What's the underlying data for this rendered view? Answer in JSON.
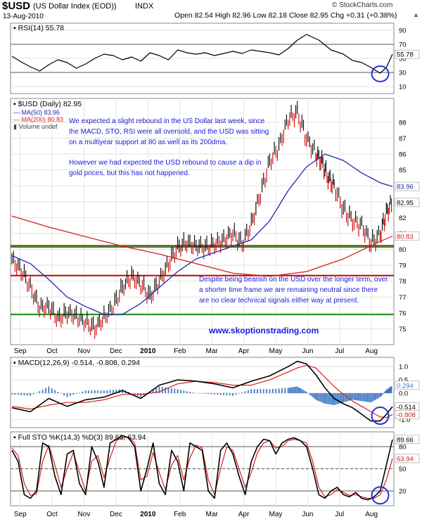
{
  "header": {
    "symbol": "$USD",
    "name": "(US Dollar Index (EOD))",
    "exchange": "INDX",
    "date": "13-Aug-2010",
    "ohlc": "Open 82.54  High 82.96  Low 82.18  Close 82.95  Chg +0.31 (+0.38%)",
    "up_arrow": "▲",
    "copyright": "© StockCharts.com"
  },
  "colors": {
    "price_up": "#000000",
    "price_down": "#cc0000",
    "ma50": "#1f2aa8",
    "ma200": "#d42020",
    "support_green": "#1a8a1a",
    "support_red": "#cc0000",
    "annotation": "#1a1adb",
    "highlight_circle": "#2233dd",
    "macd_hist": "#3b77c4",
    "rsi_fill": "#777777"
  },
  "chart_data": [
    {
      "type": "line",
      "title": "RSI(14) 55.78",
      "ylim": [
        0,
        100
      ],
      "ticks": [
        10,
        30,
        50,
        70,
        90
      ],
      "guides": [
        30,
        70
      ],
      "last_value_label": "55.78",
      "series": [
        {
          "name": "RSI(14)",
          "x": [
            0,
            6,
            12,
            18,
            24,
            30,
            36,
            42,
            48,
            54,
            60,
            66,
            72,
            78,
            84,
            90,
            96,
            102,
            108,
            114,
            120,
            126,
            132,
            138,
            144,
            150,
            156,
            162,
            168,
            174,
            180,
            186,
            192,
            200,
            208,
            216,
            222,
            228,
            234,
            240,
            244,
            248
          ],
          "values": [
            53,
            45,
            38,
            32,
            41,
            48,
            44,
            36,
            42,
            50,
            56,
            54,
            48,
            52,
            46,
            58,
            54,
            48,
            62,
            58,
            56,
            58,
            54,
            57,
            60,
            57,
            62,
            60,
            58,
            55,
            64,
            76,
            84,
            76,
            62,
            56,
            47,
            44,
            37,
            29,
            37,
            56
          ]
        }
      ],
      "circle_note": true
    },
    {
      "type": "line",
      "title": "$USD (Daily) 82.95",
      "legend": [
        "MA(50) 83.96",
        "MA(200) 80.83",
        "Volume undef"
      ],
      "ylim": [
        74,
        89.5
      ],
      "ticks": [
        75,
        76,
        77,
        78,
        79,
        80,
        81,
        82,
        83,
        84,
        85,
        86,
        87,
        88
      ],
      "value_labels": [
        "83.96",
        "82.95",
        "80.83"
      ],
      "x_labels": [
        "Sep",
        "Oct",
        "Nov",
        "Dec",
        "2010",
        "Feb",
        "Mar",
        "Apr",
        "May",
        "Jun",
        "Jul",
        "Aug"
      ],
      "horizontal_lines": [
        {
          "value": 80.15,
          "color": "green"
        },
        {
          "value": 80.15,
          "color": "red",
          "offset": 0.0
        },
        {
          "value": 78.35,
          "color": "red"
        },
        {
          "value": 75.9,
          "color": "green"
        }
      ],
      "series": [
        {
          "name": "$USD",
          "x": [
            0,
            6,
            12,
            18,
            24,
            30,
            36,
            42,
            48,
            54,
            60,
            66,
            72,
            78,
            84,
            90,
            96,
            102,
            108,
            114,
            120,
            126,
            132,
            138,
            144,
            150,
            156,
            162,
            168,
            174,
            180,
            186,
            192,
            198,
            202,
            206,
            210,
            216,
            222,
            228,
            234,
            240,
            244,
            248
          ],
          "values": [
            79.3,
            78.7,
            77.6,
            76.3,
            76.4,
            75.6,
            76.0,
            75.8,
            75.4,
            75.0,
            75.7,
            76.4,
            77.6,
            78.3,
            77.8,
            77.0,
            78.0,
            79.1,
            80.1,
            80.4,
            80.2,
            80.1,
            80.3,
            80.6,
            81.0,
            80.3,
            81.6,
            83.5,
            85.5,
            86.5,
            88.2,
            88.6,
            87.0,
            86.0,
            85.5,
            84.5,
            84.0,
            82.5,
            81.8,
            81.5,
            80.4,
            80.9,
            82.3,
            82.95
          ]
        },
        {
          "name": "MA(50)",
          "x": [
            0,
            12,
            24,
            36,
            48,
            60,
            72,
            84,
            96,
            108,
            120,
            132,
            144,
            156,
            168,
            180,
            192,
            204,
            216,
            228,
            240,
            248
          ],
          "values": [
            79.6,
            79.1,
            78.1,
            77.0,
            76.4,
            75.9,
            75.9,
            76.6,
            77.6,
            78.6,
            79.4,
            79.8,
            80.2,
            80.6,
            81.8,
            83.7,
            85.2,
            86.0,
            85.6,
            84.8,
            84.2,
            83.96
          ]
        },
        {
          "name": "MA(200)",
          "x": [
            0,
            24,
            48,
            72,
            96,
            120,
            144,
            168,
            192,
            216,
            240,
            248
          ],
          "values": [
            82.1,
            81.4,
            80.8,
            80.2,
            79.7,
            79.1,
            78.5,
            78.3,
            78.6,
            79.4,
            80.5,
            80.83
          ]
        }
      ]
    },
    {
      "type": "line",
      "title": "MACD(12,26,9) -0.514, -0.808, 0.294",
      "ylim": [
        -1.3,
        1.35
      ],
      "ticks": [
        -1.0,
        -0.5,
        0.0,
        0.5,
        1.0
      ],
      "value_labels": [
        "0.294",
        "-0.514",
        "-0.808"
      ],
      "series": [
        {
          "name": "MACD",
          "x": [
            0,
            12,
            24,
            36,
            48,
            60,
            72,
            84,
            96,
            108,
            120,
            132,
            144,
            156,
            168,
            180,
            186,
            192,
            198,
            204,
            210,
            216,
            222,
            228,
            234,
            240,
            244,
            248
          ],
          "values": [
            -0.55,
            -0.7,
            -0.2,
            -0.5,
            -0.25,
            -0.15,
            0.1,
            -0.2,
            0.3,
            0.5,
            0.45,
            0.35,
            0.2,
            0.45,
            0.65,
            1.0,
            1.2,
            1.1,
            0.7,
            0.2,
            -0.2,
            -0.4,
            -0.55,
            -0.8,
            -1.05,
            -1.05,
            -0.8,
            -0.514
          ]
        },
        {
          "name": "Signal",
          "x": [
            0,
            12,
            24,
            36,
            48,
            60,
            72,
            84,
            96,
            108,
            120,
            132,
            144,
            156,
            168,
            180,
            186,
            192,
            198,
            204,
            210,
            216,
            222,
            228,
            234,
            240,
            244,
            248
          ],
          "values": [
            -0.5,
            -0.6,
            -0.45,
            -0.35,
            -0.35,
            -0.25,
            -0.05,
            -0.05,
            0.05,
            0.35,
            0.45,
            0.4,
            0.3,
            0.3,
            0.5,
            0.8,
            0.95,
            1.05,
            0.95,
            0.6,
            0.25,
            -0.05,
            -0.3,
            -0.5,
            -0.7,
            -0.9,
            -0.92,
            -0.808
          ]
        },
        {
          "name": "Histogram",
          "x": [
            0,
            12,
            24,
            36,
            48,
            60,
            72,
            84,
            96,
            108,
            120,
            132,
            144,
            156,
            168,
            180,
            186,
            192,
            198,
            204,
            210,
            216,
            222,
            228,
            234,
            240,
            244,
            248
          ],
          "values": [
            -0.05,
            -0.1,
            0.25,
            -0.15,
            0.1,
            0.1,
            0.15,
            -0.15,
            0.25,
            0.15,
            0.0,
            -0.05,
            -0.1,
            0.15,
            0.15,
            0.2,
            0.25,
            0.05,
            -0.25,
            -0.4,
            -0.45,
            -0.35,
            -0.25,
            -0.3,
            -0.35,
            -0.15,
            0.12,
            0.294
          ]
        }
      ]
    },
    {
      "type": "line",
      "title": "Full STO %K(14,3) %D(3) 89.66, 63.94",
      "ylim": [
        0,
        100
      ],
      "ticks": [
        20,
        50,
        80
      ],
      "guides": [
        20,
        50,
        80
      ],
      "value_labels": [
        "89.66",
        "63.94"
      ],
      "x_labels": [
        "Sep",
        "Oct",
        "Nov",
        "Dec",
        "2010",
        "Feb",
        "Mar",
        "Apr",
        "May",
        "Jun",
        "Jul",
        "Aug"
      ],
      "series": [
        {
          "name": "%K",
          "x": [
            0,
            4,
            8,
            12,
            16,
            20,
            24,
            28,
            32,
            36,
            40,
            44,
            48,
            52,
            56,
            60,
            64,
            68,
            72,
            76,
            80,
            84,
            88,
            92,
            96,
            100,
            104,
            108,
            112,
            116,
            120,
            124,
            128,
            132,
            136,
            140,
            144,
            148,
            152,
            156,
            160,
            164,
            168,
            172,
            176,
            180,
            184,
            188,
            192,
            196,
            200,
            204,
            208,
            212,
            216,
            220,
            224,
            228,
            232,
            236,
            240,
            244,
            248
          ],
          "values": [
            75,
            60,
            15,
            10,
            20,
            85,
            80,
            40,
            15,
            70,
            75,
            30,
            15,
            80,
            60,
            25,
            85,
            90,
            95,
            92,
            80,
            20,
            50,
            85,
            30,
            15,
            75,
            60,
            20,
            85,
            80,
            75,
            20,
            10,
            75,
            85,
            70,
            40,
            15,
            60,
            80,
            90,
            88,
            70,
            85,
            90,
            92,
            88,
            80,
            50,
            15,
            10,
            20,
            25,
            15,
            12,
            18,
            10,
            8,
            12,
            20,
            55,
            89.66
          ]
        },
        {
          "name": "%D",
          "x": [
            0,
            4,
            8,
            12,
            16,
            20,
            24,
            28,
            32,
            36,
            40,
            44,
            48,
            52,
            56,
            60,
            64,
            68,
            72,
            76,
            80,
            84,
            88,
            92,
            96,
            100,
            104,
            108,
            112,
            116,
            120,
            124,
            128,
            132,
            136,
            140,
            144,
            148,
            152,
            156,
            160,
            164,
            168,
            172,
            176,
            180,
            184,
            188,
            192,
            196,
            200,
            204,
            208,
            212,
            216,
            220,
            224,
            228,
            232,
            236,
            240,
            244,
            248
          ],
          "values": [
            78,
            68,
            30,
            14,
            16,
            60,
            82,
            55,
            25,
            50,
            72,
            45,
            20,
            60,
            68,
            38,
            65,
            88,
            92,
            93,
            85,
            35,
            40,
            72,
            45,
            22,
            55,
            68,
            35,
            65,
            82,
            78,
            35,
            15,
            50,
            80,
            75,
            50,
            25,
            45,
            72,
            85,
            88,
            78,
            80,
            88,
            90,
            88,
            85,
            60,
            25,
            12,
            15,
            22,
            18,
            14,
            15,
            12,
            10,
            10,
            15,
            35,
            63.94
          ]
        }
      ],
      "circle_note": true
    }
  ],
  "annotations": {
    "note1": [
      "We expected a slight rebound in the US Dollar last week, since",
      "the MACD, STO, RSI were all oversold, and the USD was sitting",
      "on a multiyear support at 80 as well as its 200dma."
    ],
    "note2": [
      "However we had expected the USD rebound to cause a dip in",
      "gold prices, but this has not happened."
    ],
    "note3": [
      "Despite being bearish on the USD over the longer term, over",
      "a shorter time frame we are remaining neutral since there",
      "are no clear technical signals either way at present."
    ],
    "website": "www.skoptionstrading.com"
  }
}
